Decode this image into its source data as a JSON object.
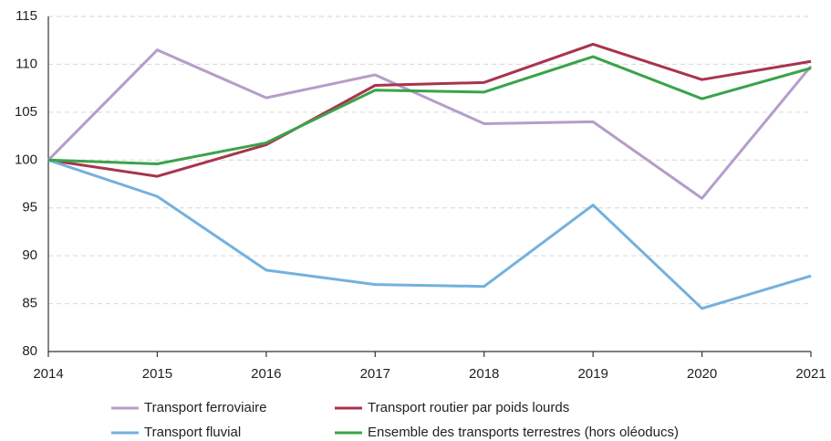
{
  "chart_data": {
    "type": "line",
    "x": [
      2014,
      2015,
      2016,
      2017,
      2018,
      2019,
      2020,
      2021
    ],
    "series": [
      {
        "name": "Transport ferroviaire",
        "color": "#b59dc9",
        "values": [
          100,
          111.5,
          106.5,
          108.9,
          103.8,
          104.0,
          96.0,
          109.8
        ]
      },
      {
        "name": "Transport routier par poids lourds",
        "color": "#a8344f",
        "values": [
          100,
          98.3,
          101.6,
          107.8,
          108.1,
          112.1,
          108.4,
          110.3
        ]
      },
      {
        "name": "Transport fluvial",
        "color": "#74b1dd",
        "values": [
          100,
          96.2,
          88.5,
          87.0,
          86.8,
          95.3,
          84.5,
          87.9
        ]
      },
      {
        "name": "Ensemble des transports terrestres (hors oléoducs)",
        "color": "#3aa34a",
        "values": [
          100,
          99.6,
          101.8,
          107.3,
          107.1,
          110.8,
          106.4,
          109.6
        ]
      }
    ],
    "xlim": [
      2014,
      2021
    ],
    "xticks": [
      2014,
      2015,
      2016,
      2017,
      2018,
      2019,
      2020,
      2021
    ],
    "ylim": [
      80,
      115
    ],
    "yticks": [
      80,
      85,
      90,
      95,
      100,
      105,
      110,
      115
    ],
    "grid": true
  }
}
